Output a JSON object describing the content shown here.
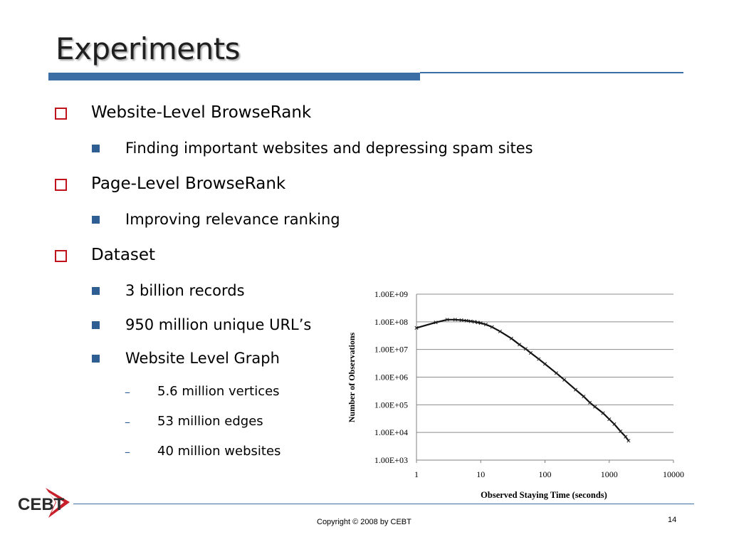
{
  "slide": {
    "title": "Experiments",
    "bullets": [
      {
        "level": 1,
        "text": "Website-Level BrowseRank"
      },
      {
        "level": 2,
        "text": "Finding important websites and depressing spam sites"
      },
      {
        "level": 1,
        "text": "Page-Level BrowseRank"
      },
      {
        "level": 2,
        "text": "Improving relevance ranking"
      },
      {
        "level": 1,
        "text": "Dataset"
      },
      {
        "level": 2,
        "text": "3 billion records"
      },
      {
        "level": 2,
        "text": "950 million unique URL’s"
      },
      {
        "level": 2,
        "text": "Website Level Graph"
      },
      {
        "level": 3,
        "text": "5.6 million vertices"
      },
      {
        "level": 3,
        "text": "53 million edges"
      },
      {
        "level": 3,
        "text": "40 million websites"
      }
    ],
    "logo_text": "CEBT",
    "footer": "Copyright © 2008 by CEBT",
    "page_number": "14"
  },
  "chart_data": {
    "type": "scatter",
    "title": "",
    "xlabel": "Observed Staying Time (seconds)",
    "ylabel": "Number of Observations",
    "x_scale": "log",
    "y_scale": "log",
    "xlim": [
      1,
      10000
    ],
    "ylim": [
      1000,
      1000000000
    ],
    "x_ticks": [
      "1",
      "10",
      "100",
      "1000",
      "10000"
    ],
    "y_ticks": [
      "1.00E+03",
      "1.00E+04",
      "1.00E+05",
      "1.00E+06",
      "1.00E+07",
      "1.00E+08",
      "1.00E+09"
    ],
    "grid": "horizontal",
    "marker": "x",
    "series": [
      {
        "x": [
          1,
          2,
          3,
          4,
          5,
          6,
          7,
          8,
          9,
          10,
          12,
          15,
          20,
          30,
          40,
          50,
          60,
          80,
          100,
          150,
          200,
          300,
          400,
          500,
          600,
          800,
          1000,
          1200,
          1500,
          1800,
          2000
        ],
        "y": [
          60000000,
          95000000,
          120000000,
          120000000,
          115000000,
          110000000,
          105000000,
          100000000,
          95000000,
          90000000,
          80000000,
          65000000,
          45000000,
          25000000,
          15000000,
          10500000,
          7500000,
          4500000,
          3000000,
          1400000,
          800000,
          350000,
          200000,
          120000,
          85000,
          50000,
          30000,
          20000,
          11000,
          7000,
          5000
        ]
      }
    ]
  }
}
